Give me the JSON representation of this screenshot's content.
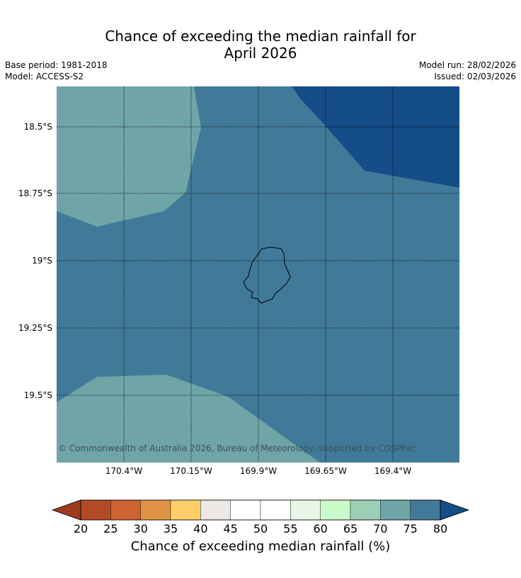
{
  "title": {
    "line1": "Chance of exceeding the median rainfall for",
    "line2": "April 2026"
  },
  "meta": {
    "base_period": "Base period: 1981-2018",
    "model": "Model: ACCESS-S2",
    "model_run": "Model run: 28/02/2026",
    "issued": "Issued: 02/03/2026"
  },
  "map": {
    "lat_labels": [
      "18.5°S",
      "18.75°S",
      "19°S",
      "19.25°S",
      "19.5°S"
    ],
    "lon_labels": [
      "170.4°W",
      "170.15°W",
      "169.9°W",
      "169.65°W",
      "169.4°W"
    ],
    "copyright": "© Commonwealth of Australia 2026, Bureau of Meteorology, supported by COSPPac",
    "region_colors": {
      "70-75": "#6fa5a7",
      "75-80": "#417a99",
      "80+": "#144d87"
    }
  },
  "colorbar": {
    "ticks": [
      "20",
      "25",
      "30",
      "35",
      "40",
      "45",
      "50",
      "55",
      "60",
      "65",
      "70",
      "75",
      "80"
    ],
    "colors": [
      "#b24a26",
      "#cc6331",
      "#e09448",
      "#fdcd68",
      "#ede8e4",
      "#ffffff",
      "#ffffff",
      "#e9f6e7",
      "#c9fac9",
      "#9dcfb7",
      "#6fa5a7",
      "#417a99"
    ],
    "under_color": "#9b3b20",
    "over_color": "#144d87",
    "label": "Chance of exceeding median rainfall (%)"
  }
}
